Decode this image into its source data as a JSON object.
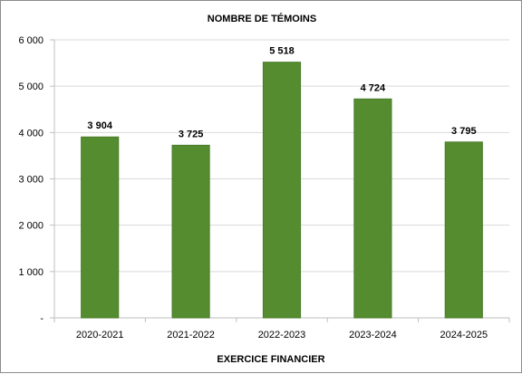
{
  "chart_data": {
    "type": "bar",
    "title": "NOMBRE DE TÉMOINS",
    "xlabel": "EXERCICE FINANCIER",
    "ylabel": "",
    "categories": [
      "2020-2021",
      "2021-2022",
      "2022-2023",
      "2023-2024",
      "2024-2025"
    ],
    "values": [
      3904,
      3725,
      5518,
      4724,
      3795
    ],
    "data_labels": [
      "3 904",
      "3 725",
      "5 518",
      "4 724",
      "3 795"
    ],
    "ylim": [
      0,
      6000
    ],
    "y_ticks": [
      0,
      1000,
      2000,
      3000,
      4000,
      5000,
      6000
    ],
    "y_tick_labels": [
      "-",
      "1 000",
      "2 000",
      "3 000",
      "4 000",
      "5 000",
      "6 000"
    ],
    "grid": true,
    "legend": "none",
    "colors": {
      "bar": "#548c2f",
      "bar_edge": "#4a7d2a",
      "grid": "#d9d9d9",
      "axis": "#bfbfbf",
      "frame": "#8c8c8c"
    }
  }
}
